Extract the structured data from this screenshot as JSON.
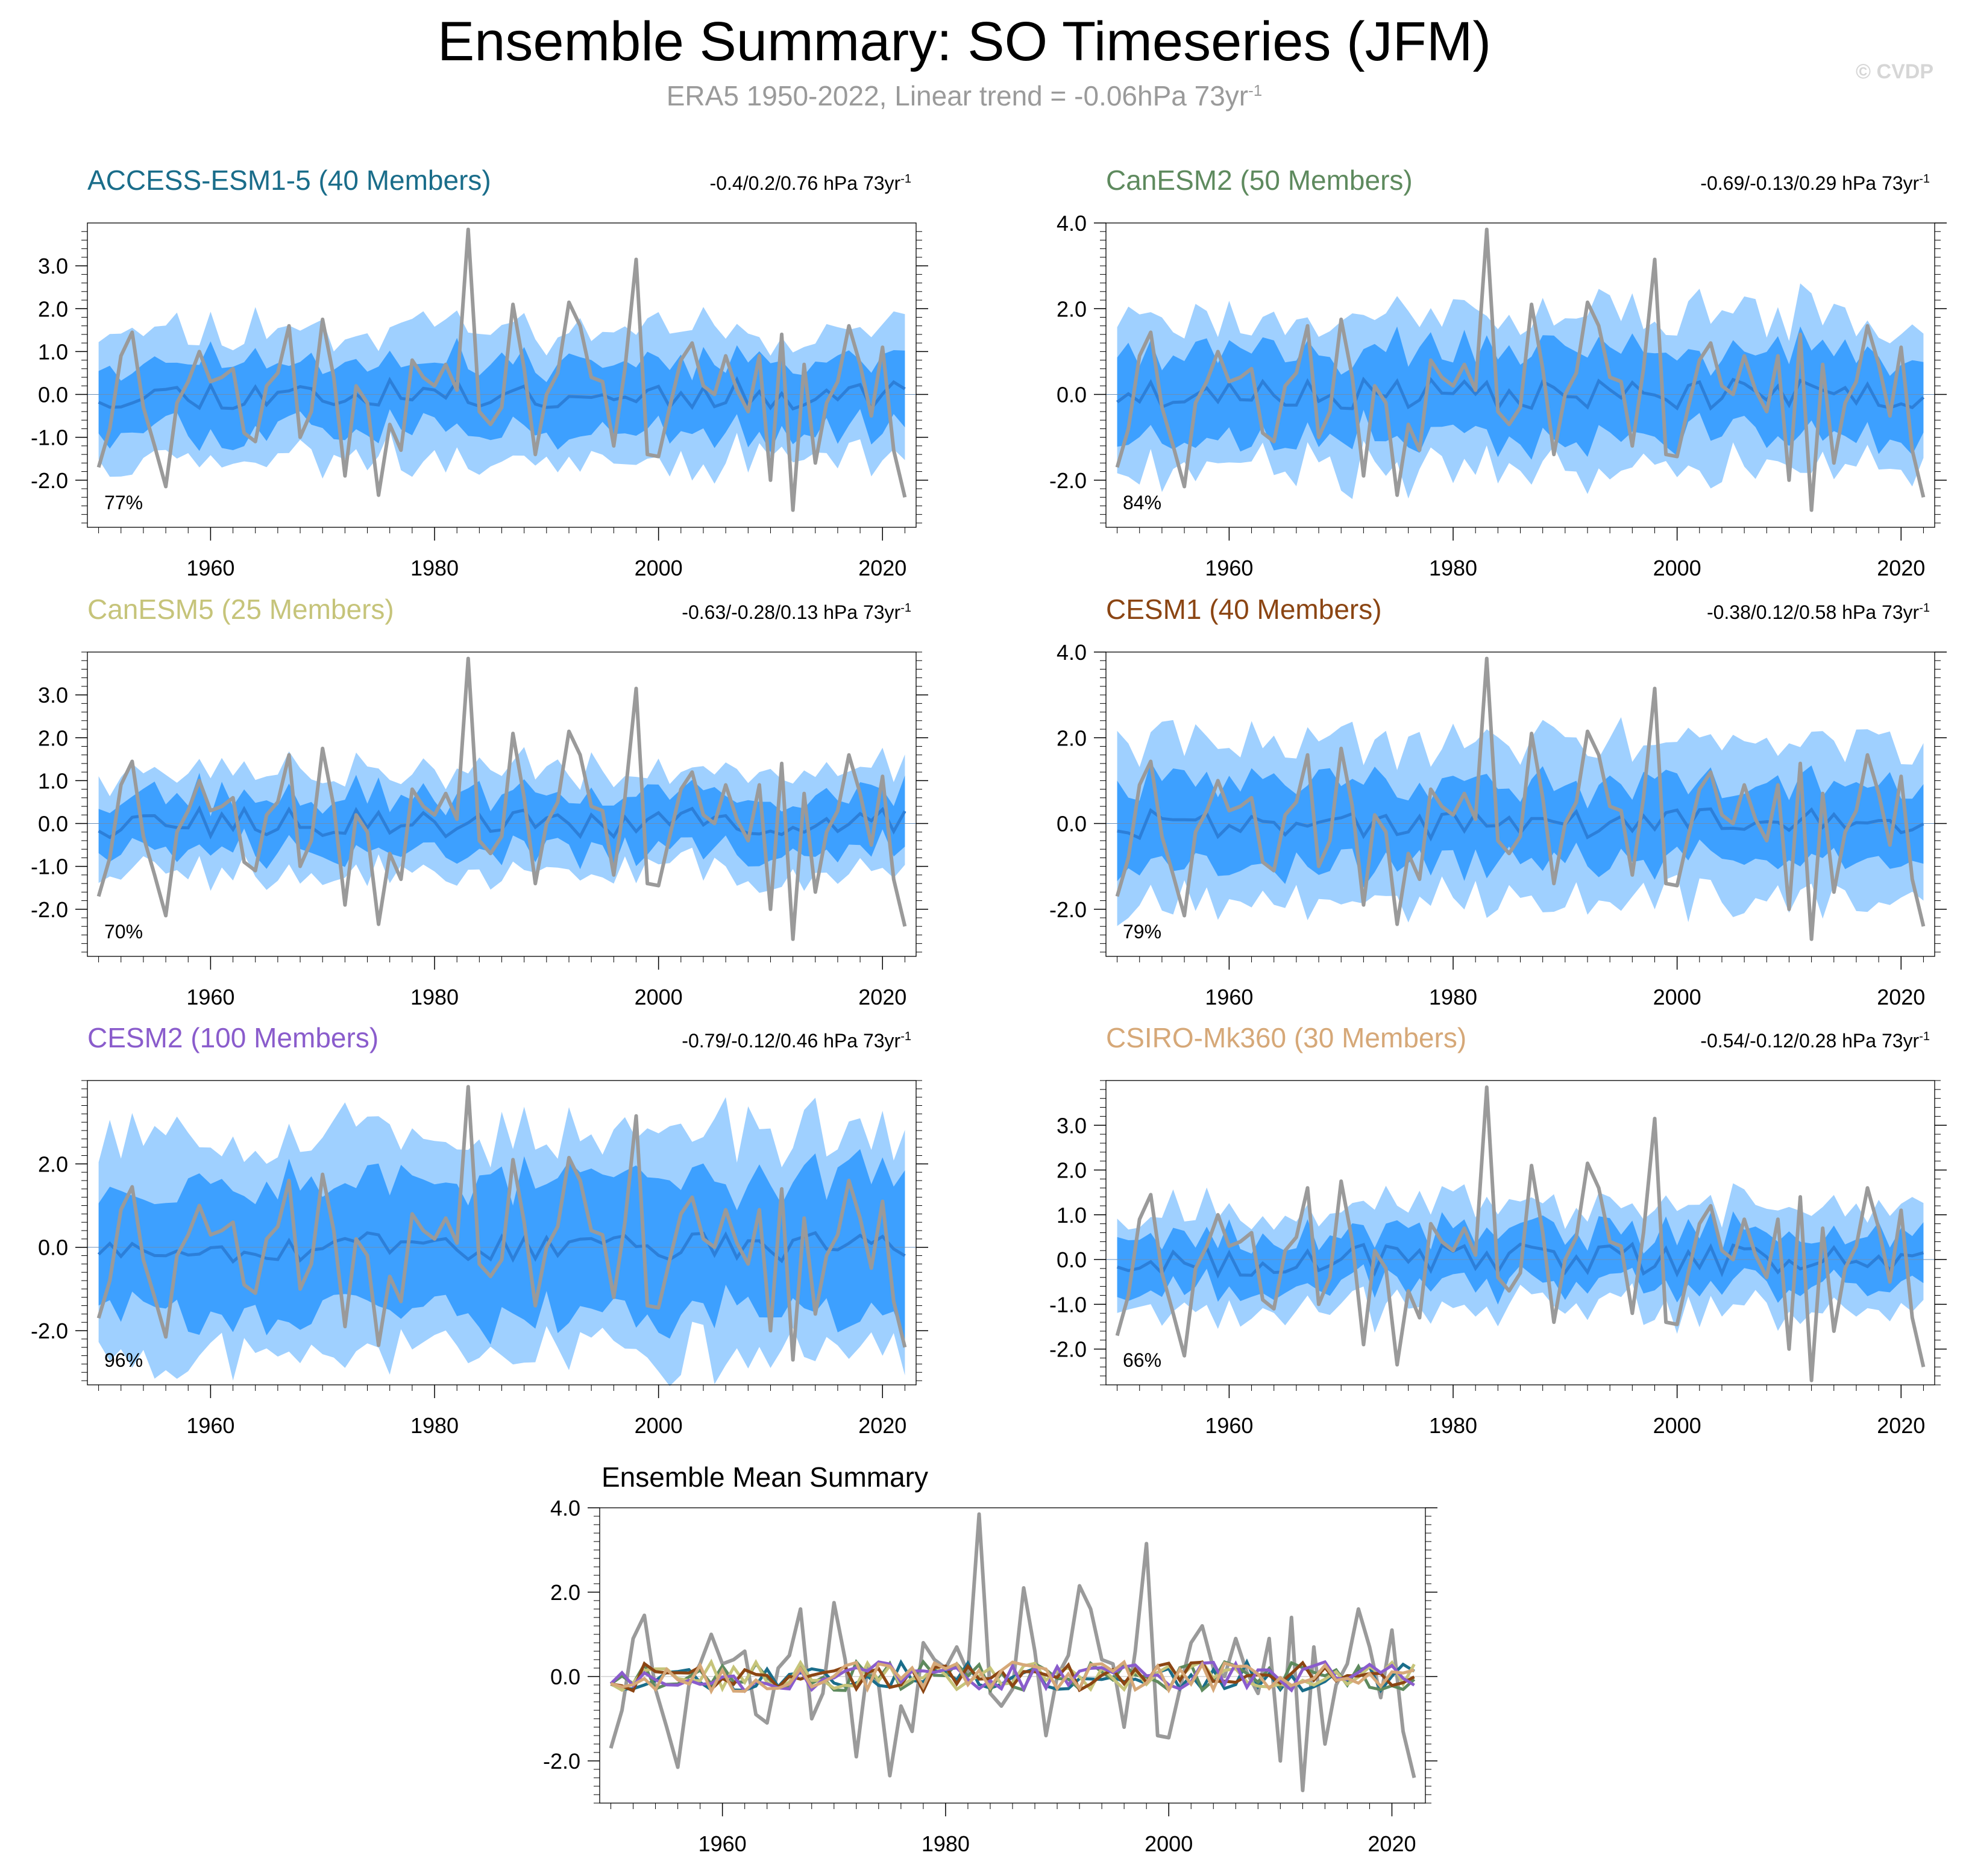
{
  "header": {
    "title": "Ensemble Summary: SO Timeseries (JFM)",
    "subtitle_main": "ERA5 1950-2022, Linear trend = -0.06hPa 73yr",
    "subtitle_sup": "-1",
    "watermark": "© CVDP"
  },
  "colors": {
    "band_outer": "#9fd0ff",
    "band_inner": "#3da0ff",
    "ensemble_mean": "#2c7fd9",
    "observations": "#9a9a9a"
  },
  "chart_data": {
    "type": "line",
    "x_start": 1950,
    "x_end": 2022,
    "xlim": [
      1949,
      2023
    ],
    "x_ticks": [
      1960,
      1980,
      2000,
      2020
    ],
    "observations": {
      "name": "ERA5",
      "values": [
        -1.7,
        -0.8,
        0.9,
        1.45,
        -0.3,
        -1.2,
        -2.15,
        -0.2,
        0.3,
        1.0,
        0.3,
        0.4,
        0.6,
        -0.9,
        -1.1,
        0.2,
        0.5,
        1.6,
        -1.0,
        -0.4,
        1.75,
        0.4,
        -1.9,
        0.2,
        -0.2,
        -2.35,
        -0.7,
        -1.3,
        0.8,
        0.4,
        0.2,
        0.7,
        0.1,
        3.85,
        -0.4,
        -0.7,
        -0.3,
        2.1,
        0.6,
        -1.4,
        0.0,
        0.5,
        2.15,
        1.6,
        0.4,
        0.3,
        -1.2,
        0.6,
        3.15,
        -1.4,
        -1.45,
        -0.3,
        0.8,
        1.2,
        0.2,
        0.0,
        0.9,
        0.1,
        -0.4,
        0.9,
        -2.0,
        1.4,
        -2.7,
        0.7,
        -1.6,
        -0.2,
        0.3,
        1.6,
        0.7,
        -0.5,
        1.1,
        -1.3,
        -2.4
      ]
    },
    "panels": [
      {
        "title": "ACCESS-ESM1-5 (40 Members)",
        "range_main": "-0.4/0.2/0.76 hPa 73yr",
        "range_sup": "-1",
        "pct": "77%",
        "color": "#1a6d8a",
        "ylim": [
          -3.1,
          4.0
        ],
        "y_ticks": [
          -2,
          -1,
          0,
          1,
          2,
          3
        ],
        "y_tick_labels": [
          "-2.0",
          "-1.0",
          "0.0",
          "1.0",
          "2.0",
          "3.0"
        ],
        "outer_width": 1.55,
        "inner_width": 0.8,
        "seed": 11
      },
      {
        "title": "CanESM2 (50 Members)",
        "range_main": "-0.69/-0.13/0.29 hPa 73yr",
        "range_sup": "-1",
        "pct": "84%",
        "color": "#5e8a5e",
        "ylim": [
          -3.1,
          4.0
        ],
        "y_ticks": [
          -2,
          0,
          2,
          4
        ],
        "y_tick_labels": [
          "-2.0",
          "0.0",
          "2.0",
          "4.0"
        ],
        "outer_width": 1.85,
        "inner_width": 1.0,
        "seed": 23
      },
      {
        "title": "CanESM5 (25 Members)",
        "range_main": "-0.63/-0.28/0.13 hPa 73yr",
        "range_sup": "-1",
        "pct": "70%",
        "color": "#c6c47a",
        "ylim": [
          -3.1,
          4.0
        ],
        "y_ticks": [
          -2,
          -1,
          0,
          1,
          2,
          3
        ],
        "y_tick_labels": [
          "-2.0",
          "-1.0",
          "0.0",
          "1.0",
          "2.0",
          "3.0"
        ],
        "outer_width": 1.2,
        "inner_width": 0.65,
        "seed": 37
      },
      {
        "title": "CESM1 (40 Members)",
        "range_main": "-0.38/0.12/0.58 hPa 73yr",
        "range_sup": "-1",
        "pct": "79%",
        "color": "#8b4513",
        "ylim": [
          -3.1,
          4.0
        ],
        "y_ticks": [
          -2,
          0,
          2,
          4
        ],
        "y_tick_labels": [
          "-2.0",
          "0.0",
          "2.0",
          "4.0"
        ],
        "outer_width": 1.9,
        "inner_width": 0.95,
        "seed": 41
      },
      {
        "title": "CESM2 (100 Members)",
        "range_main": "-0.79/-0.12/0.46 hPa 73yr",
        "range_sup": "-1",
        "pct": "96%",
        "color": "#8a5ccc",
        "ylim": [
          -3.3,
          4.0
        ],
        "y_ticks": [
          -2,
          0,
          2
        ],
        "y_tick_labels": [
          "-2.0",
          "0.0",
          "2.0"
        ],
        "outer_width": 2.7,
        "inner_width": 1.6,
        "seed": 53
      },
      {
        "title": "CSIRO-Mk360 (30 Members)",
        "range_main": "-0.54/-0.12/0.28 hPa 73yr",
        "range_sup": "-1",
        "pct": "66%",
        "color": "#d6a878",
        "ylim": [
          -2.8,
          4.0
        ],
        "y_ticks": [
          -2,
          -1,
          0,
          1,
          2,
          3
        ],
        "y_tick_labels": [
          "-2.0",
          "-1.0",
          "0.0",
          "1.0",
          "2.0",
          "3.0"
        ],
        "outer_width": 1.15,
        "inner_width": 0.6,
        "seed": 67
      }
    ],
    "mean_summary": {
      "title": "Ensemble Mean Summary",
      "ylim": [
        -3.0,
        4.0
      ],
      "y_ticks": [
        -2,
        0,
        2,
        4
      ],
      "y_tick_labels": [
        "-2.0",
        "0.0",
        "2.0",
        "4.0"
      ]
    }
  }
}
